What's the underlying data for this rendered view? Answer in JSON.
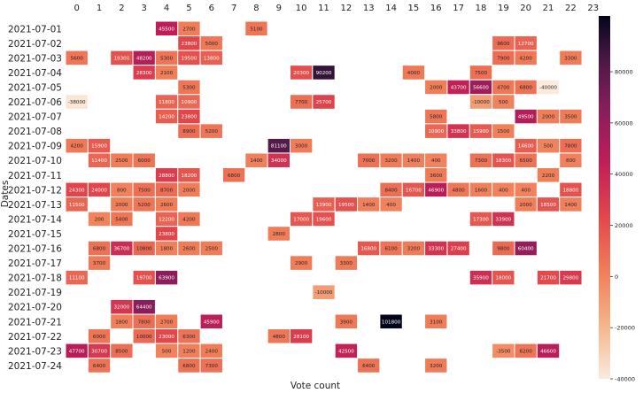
{
  "chart_data": {
    "type": "heatmap",
    "title": "",
    "xlabel": "Vote count",
    "ylabel": "Dates",
    "x_categories": [
      "0",
      "1",
      "2",
      "3",
      "4",
      "5",
      "6",
      "7",
      "8",
      "9",
      "10",
      "11",
      "12",
      "13",
      "14",
      "15",
      "16",
      "17",
      "18",
      "19",
      "20",
      "21",
      "22",
      "23"
    ],
    "y_categories": [
      "2021-07-01",
      "2021-07-02",
      "2021-07-03",
      "2021-07-04",
      "2021-07-05",
      "2021-07-06",
      "2021-07-07",
      "2021-07-08",
      "2021-07-09",
      "2021-07-10",
      "2021-07-11",
      "2021-07-12",
      "2021-07-13",
      "2021-07-14",
      "2021-07-15",
      "2021-07-16",
      "2021-07-17",
      "2021-07-18",
      "2021-07-19",
      "2021-07-20",
      "2021-07-21",
      "2021-07-22",
      "2021-07-23",
      "2021-07-24"
    ],
    "values": [
      [
        null,
        null,
        null,
        null,
        45500,
        2700,
        null,
        null,
        5100,
        null,
        null,
        null,
        null,
        null,
        null,
        null,
        null,
        null,
        null,
        null,
        null,
        null,
        null,
        null
      ],
      [
        null,
        null,
        null,
        null,
        null,
        23800,
        5000,
        null,
        null,
        null,
        null,
        null,
        null,
        null,
        null,
        null,
        null,
        null,
        null,
        9600,
        12700,
        null,
        null,
        null
      ],
      [
        5600,
        null,
        19300,
        48200,
        5300,
        19500,
        13800,
        null,
        null,
        null,
        null,
        null,
        null,
        null,
        null,
        null,
        null,
        null,
        null,
        7900,
        4200,
        null,
        3300,
        null
      ],
      [
        null,
        null,
        null,
        28300,
        2100,
        null,
        null,
        null,
        null,
        null,
        20300,
        90200,
        null,
        null,
        null,
        4000,
        null,
        null,
        7500,
        null,
        null,
        null,
        null,
        null
      ],
      [
        null,
        null,
        null,
        null,
        null,
        5300,
        null,
        null,
        null,
        null,
        null,
        null,
        null,
        null,
        null,
        null,
        2000,
        43700,
        56600,
        4700,
        6800,
        -40000,
        null,
        null
      ],
      [
        -38000,
        null,
        null,
        null,
        11800,
        10900,
        null,
        null,
        null,
        null,
        7700,
        25700,
        null,
        null,
        null,
        null,
        null,
        null,
        -10000,
        500,
        null,
        null,
        null,
        null
      ],
      [
        null,
        null,
        null,
        null,
        14200,
        23800,
        null,
        null,
        null,
        null,
        null,
        null,
        null,
        null,
        null,
        null,
        5800,
        null,
        null,
        null,
        49500,
        2000,
        3500,
        null
      ],
      [
        null,
        null,
        null,
        null,
        null,
        8900,
        5200,
        null,
        null,
        null,
        null,
        null,
        null,
        null,
        null,
        null,
        10900,
        33800,
        15900,
        1500,
        null,
        null,
        null,
        null
      ],
      [
        4200,
        15900,
        null,
        null,
        null,
        null,
        null,
        null,
        null,
        81100,
        3000,
        null,
        null,
        null,
        null,
        null,
        null,
        null,
        null,
        null,
        14600,
        500,
        7800,
        null
      ],
      [
        null,
        11400,
        2500,
        6000,
        null,
        null,
        null,
        null,
        1400,
        34000,
        null,
        null,
        null,
        7000,
        3200,
        1400,
        400,
        null,
        7300,
        18300,
        6500,
        null,
        800,
        null
      ],
      [
        null,
        null,
        null,
        null,
        28800,
        18200,
        null,
        6800,
        null,
        null,
        null,
        null,
        null,
        null,
        null,
        null,
        3600,
        null,
        null,
        null,
        null,
        2200,
        null,
        null
      ],
      [
        24300,
        24000,
        800,
        7500,
        8700,
        2000,
        null,
        null,
        null,
        null,
        null,
        null,
        null,
        null,
        8400,
        16700,
        46900,
        4800,
        1600,
        400,
        400,
        null,
        18800,
        null
      ],
      [
        11500,
        null,
        2000,
        5200,
        2600,
        null,
        null,
        null,
        null,
        null,
        null,
        13900,
        19500,
        1400,
        400,
        null,
        null,
        null,
        null,
        null,
        2000,
        18500,
        1400,
        null
      ],
      [
        null,
        200,
        5400,
        null,
        12200,
        4200,
        null,
        null,
        null,
        null,
        17000,
        19600,
        null,
        null,
        null,
        null,
        null,
        null,
        17300,
        33900,
        null,
        null,
        null,
        null
      ],
      [
        null,
        null,
        null,
        null,
        23800,
        null,
        null,
        null,
        null,
        2800,
        null,
        null,
        null,
        null,
        null,
        null,
        null,
        null,
        null,
        null,
        null,
        null,
        null,
        null
      ],
      [
        null,
        6800,
        36700,
        10800,
        1800,
        2600,
        2500,
        null,
        null,
        null,
        null,
        null,
        null,
        16800,
        6100,
        3200,
        33300,
        27400,
        null,
        9800,
        60400,
        null,
        null,
        null
      ],
      [
        null,
        3700,
        null,
        null,
        null,
        null,
        null,
        null,
        null,
        null,
        2900,
        null,
        3300,
        null,
        null,
        null,
        null,
        null,
        null,
        null,
        null,
        null,
        null,
        null
      ],
      [
        11100,
        null,
        null,
        19700,
        63900,
        null,
        null,
        null,
        null,
        null,
        null,
        null,
        null,
        null,
        null,
        null,
        null,
        null,
        35900,
        18000,
        null,
        21700,
        29800,
        null
      ],
      [
        null,
        null,
        null,
        null,
        null,
        null,
        null,
        null,
        null,
        null,
        null,
        -10000,
        null,
        null,
        null,
        null,
        null,
        null,
        null,
        null,
        null,
        null,
        null,
        null
      ],
      [
        null,
        null,
        32000,
        64400,
        null,
        null,
        null,
        null,
        null,
        null,
        null,
        null,
        null,
        null,
        null,
        null,
        null,
        null,
        null,
        null,
        null,
        null,
        null,
        null
      ],
      [
        null,
        null,
        1800,
        7800,
        2700,
        null,
        45900,
        null,
        null,
        null,
        null,
        null,
        3900,
        null,
        101800,
        null,
        3100,
        null,
        null,
        null,
        null,
        null,
        null,
        null
      ],
      [
        null,
        6000,
        null,
        10000,
        23000,
        6300,
        null,
        null,
        null,
        4800,
        28100,
        null,
        null,
        null,
        null,
        null,
        null,
        null,
        null,
        null,
        null,
        null,
        null,
        null
      ],
      [
        47700,
        30700,
        8500,
        null,
        500,
        1200,
        2400,
        null,
        null,
        null,
        null,
        null,
        42500,
        null,
        null,
        null,
        null,
        null,
        null,
        -3500,
        6200,
        46600,
        null,
        null
      ],
      [
        null,
        6400,
        null,
        null,
        null,
        6800,
        7300,
        null,
        null,
        null,
        null,
        null,
        null,
        6400,
        null,
        null,
        3200,
        null,
        null,
        null,
        null,
        null,
        null,
        null
      ]
    ],
    "vmin": -40000,
    "vmax": 101800,
    "colormap": "rocket_r",
    "colorbar_ticks": [
      -40000,
      -20000,
      0,
      20000,
      40000,
      60000,
      80000
    ],
    "grid": false,
    "legend": "colorbar-right"
  }
}
